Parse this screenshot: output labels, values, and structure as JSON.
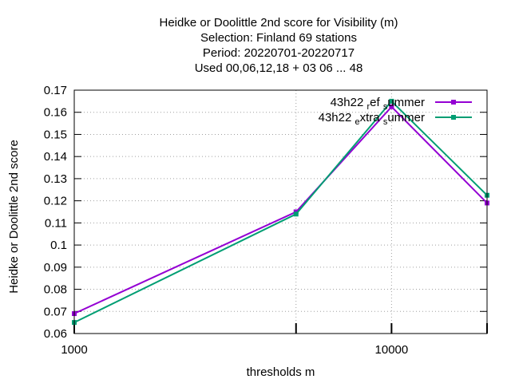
{
  "chart_data": {
    "type": "line",
    "title_lines": [
      "Heidke or Doolittle 2nd score  for Visibility (m)",
      "Selection: Finland     69 stations",
      "Period: 20220701-20220717",
      "Used  00,06,12,18  + 03 06 ... 48"
    ],
    "xlabel": "thresholds m",
    "ylabel": "Heidke or Doolittle 2nd score",
    "x_scale": "log",
    "xlim": [
      1000,
      20000
    ],
    "ylim": [
      0.06,
      0.17
    ],
    "x_ticks": [
      {
        "value": 1000,
        "label": "1000"
      },
      {
        "value": 5000,
        "label": ""
      },
      {
        "value": 10000,
        "label": "10000"
      },
      {
        "value": 20000,
        "label": ""
      }
    ],
    "y_ticks": [
      "0.06",
      "0.07",
      "0.08",
      "0.09",
      "0.1",
      "0.11",
      "0.12",
      "0.13",
      "0.14",
      "0.15",
      "0.16",
      "0.17"
    ],
    "grid": true,
    "legend_position": "top-right",
    "series": [
      {
        "name": "43h22_ref_summer",
        "name_parts": [
          {
            "text": "43h22 ",
            "sub": false
          },
          {
            "text": "r",
            "sub": true
          },
          {
            "text": "ef ",
            "sub": false
          },
          {
            "text": "s",
            "sub": true
          },
          {
            "text": "ummer",
            "sub": false
          }
        ],
        "color": "#9400d3",
        "x": [
          1000,
          5000,
          10000,
          20000
        ],
        "y": [
          0.069,
          0.115,
          0.1625,
          0.119
        ]
      },
      {
        "name": "43h22_extra_summer",
        "name_parts": [
          {
            "text": "43h22 ",
            "sub": false
          },
          {
            "text": "e",
            "sub": true
          },
          {
            "text": "xtra ",
            "sub": false
          },
          {
            "text": "s",
            "sub": true
          },
          {
            "text": "ummer",
            "sub": false
          }
        ],
        "color": "#009e73",
        "x": [
          1000,
          5000,
          10000,
          20000
        ],
        "y": [
          0.065,
          0.114,
          0.165,
          0.1225
        ]
      }
    ]
  }
}
